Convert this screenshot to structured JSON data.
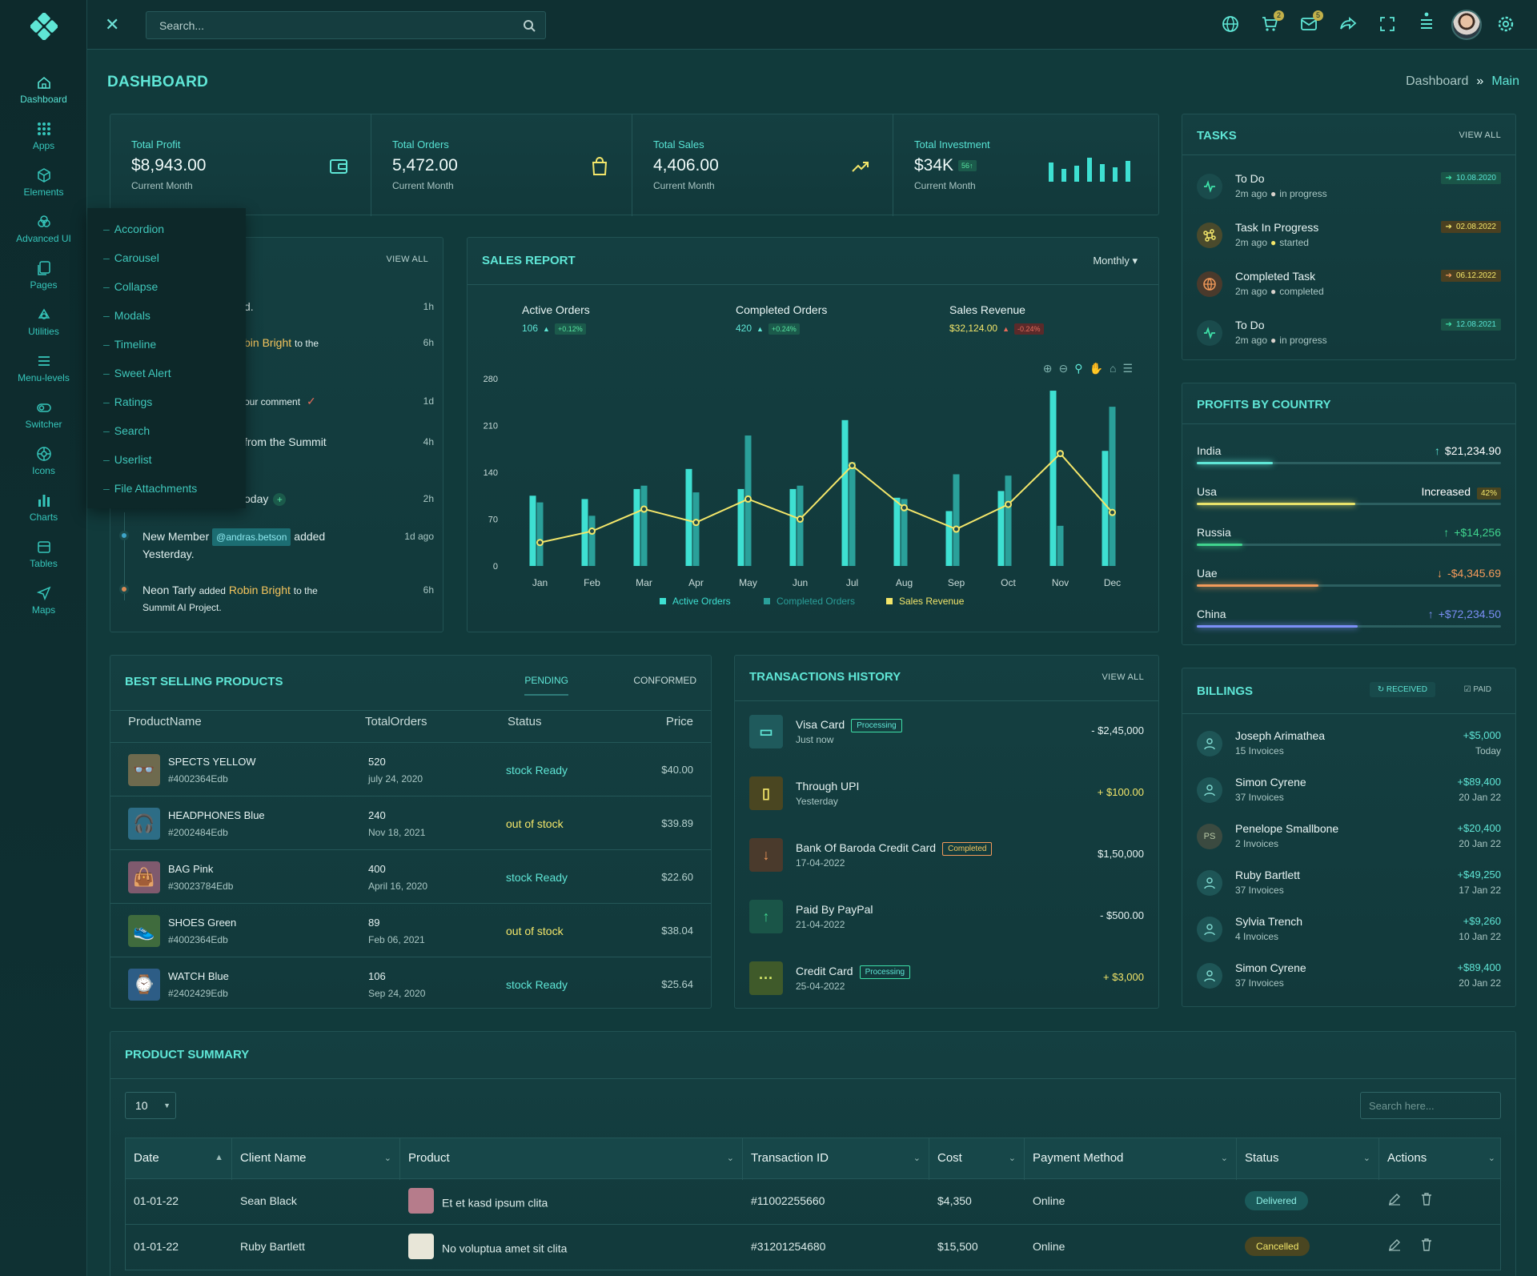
{
  "sidebar": {
    "items": [
      {
        "label": "Dashboard",
        "icon": "home-icon"
      },
      {
        "label": "Apps",
        "icon": "grid-icon"
      },
      {
        "label": "Elements",
        "icon": "cube-icon"
      },
      {
        "label": "Advanced UI",
        "icon": "layers-icon"
      },
      {
        "label": "Pages",
        "icon": "pages-icon"
      },
      {
        "label": "Utilities",
        "icon": "utilities-icon"
      },
      {
        "label": "Menu-levels",
        "icon": "menu-icon"
      },
      {
        "label": "Switcher",
        "icon": "toggle-icon"
      },
      {
        "label": "Icons",
        "icon": "globe-icon"
      },
      {
        "label": "Charts",
        "icon": "chart-icon"
      },
      {
        "label": "Tables",
        "icon": "table-icon"
      },
      {
        "label": "Maps",
        "icon": "map-icon"
      }
    ]
  },
  "submenu": {
    "items": [
      "Accordion",
      "Carousel",
      "Collapse",
      "Modals",
      "Timeline",
      "Sweet Alert",
      "Ratings",
      "Search",
      "Userlist",
      "File Attachments"
    ]
  },
  "header": {
    "search_placeholder": "Search...",
    "cart_count": "2",
    "mail_count": "5"
  },
  "page": {
    "title": "DASHBOARD",
    "crumb_parent": "Dashboard",
    "crumb_sep": "»",
    "crumb_current": "Main"
  },
  "stats": [
    {
      "label": "Total Profit",
      "value": "$8,943.00",
      "sub": "Current Month"
    },
    {
      "label": "Total Orders",
      "value": "5,472.00",
      "sub": "Current Month"
    },
    {
      "label": "Total Sales",
      "value": "4,406.00",
      "sub": "Current Month"
    },
    {
      "label": "Total Investment",
      "value": "$34K",
      "badge": "56↑",
      "sub": "Current Month"
    }
  ],
  "activity": {
    "view_all": "VIEW ALL",
    "items": [
      {
        "pre": "d.",
        "hl": "",
        "post": "",
        "time": "1h"
      },
      {
        "pre": "",
        "hl": "bin Bright",
        "post": "to the",
        "time": "6h"
      },
      {
        "pre": "our comment",
        "hl": "",
        "post": "",
        "time": "1d"
      },
      {
        "pre": "from the Summit",
        "hl": "",
        "post": "",
        "time": "4h"
      },
      {
        "pre": "oday",
        "hl": "",
        "post": "",
        "time": "2h"
      },
      {
        "pre": "New Member",
        "tag": "@andras.betson",
        "post": "added",
        "line2": "Yesterday.",
        "time": "1d ago"
      },
      {
        "pre": "Neon Tarly",
        "mid": "added",
        "hl": "Robin Bright",
        "post": "to the",
        "line2": "Summit AI Project.",
        "time": "6h"
      }
    ]
  },
  "sales": {
    "title": "SALES REPORT",
    "period": "Monthly",
    "kpis": [
      {
        "label": "Active Orders",
        "value": "106",
        "pct": "+0.12%"
      },
      {
        "label": "Completed Orders",
        "value": "420",
        "pct": "+0.24%"
      },
      {
        "label": "Sales Revenue",
        "value": "$32,124.00",
        "pct": "-0.24%"
      }
    ]
  },
  "chart_data": {
    "type": "bar",
    "categories": [
      "Jan",
      "Feb",
      "Mar",
      "Apr",
      "May",
      "Jun",
      "Jul",
      "Aug",
      "Sep",
      "Oct",
      "Nov",
      "Dec"
    ],
    "series": [
      {
        "name": "Active Orders",
        "type": "bar",
        "values": [
          105,
          100,
          115,
          145,
          115,
          115,
          218,
          102,
          82,
          112,
          262,
          172
        ],
        "color": "#3ee0d2"
      },
      {
        "name": "Completed Orders",
        "type": "bar",
        "values": [
          95,
          75,
          120,
          110,
          195,
          120,
          155,
          100,
          137,
          135,
          60,
          238
        ],
        "color": "#2aa09a"
      },
      {
        "name": "Sales Revenue",
        "type": "line",
        "values": [
          35,
          52,
          85,
          65,
          100,
          70,
          150,
          87,
          55,
          92,
          168,
          80
        ],
        "color": "#f3e66a"
      }
    ],
    "yticks": [
      0,
      70,
      140,
      210,
      280
    ],
    "ylim": [
      0,
      280
    ]
  },
  "tasks": {
    "title": "TASKS",
    "view_all": "VIEW ALL",
    "items": [
      {
        "name": "To Do",
        "time": "2m ago",
        "status": "in progress",
        "date": "10.08.2020",
        "color": "#3ee0a8",
        "icon": "pulse-icon"
      },
      {
        "name": "Task In Progress",
        "time": "2m ago",
        "status": "started",
        "date": "02.08.2022",
        "color": "#f3e66a",
        "icon": "command-icon"
      },
      {
        "name": "Completed Task",
        "time": "2m ago",
        "status": "completed",
        "date": "06.12.2022",
        "color": "#f39a5a",
        "icon": "globe-icon"
      },
      {
        "name": "To Do",
        "time": "2m ago",
        "status": "in progress",
        "date": "12.08.2021",
        "color": "#3ee0a8",
        "icon": "pulse-icon"
      }
    ]
  },
  "profits": {
    "title": "PROFITS BY COUNTRY",
    "items": [
      {
        "country": "India",
        "value": "$21,234.90",
        "arrow": "↑",
        "fill": 0.25,
        "color": "#5fe6d6"
      },
      {
        "country": "Usa",
        "value": "Increased",
        "badge": "42%",
        "fill": 0.52,
        "color": "#e8e36a"
      },
      {
        "country": "Russia",
        "value": "+$14,256",
        "arrow": "↑",
        "fill": 0.15,
        "color": "#40d48e"
      },
      {
        "country": "Uae",
        "value": "-$4,345.69",
        "arrow": "↓",
        "fill": 0.4,
        "color": "#f39a5a"
      },
      {
        "country": "China",
        "value": "+$72,234.50",
        "arrow": "↑",
        "fill": 0.53,
        "color": "#7b8ff6"
      }
    ]
  },
  "billings": {
    "title": "BILLINGS",
    "tab_received": "RECEIVED",
    "tab_paid": "PAID",
    "items": [
      {
        "name": "Joseph Arimathea",
        "invoices": "15 Invoices",
        "amount": "+$5,000",
        "date": "Today",
        "initials": ""
      },
      {
        "name": "Simon Cyrene",
        "invoices": "37 Invoices",
        "amount": "+$89,400",
        "date": "20 Jan 22",
        "initials": ""
      },
      {
        "name": "Penelope Smallbone",
        "invoices": "2 Invoices",
        "amount": "+$20,400",
        "date": "20 Jan 22",
        "initials": "PS"
      },
      {
        "name": "Ruby Bartlett",
        "invoices": "37 Invoices",
        "amount": "+$49,250",
        "date": "17 Jan 22",
        "initials": ""
      },
      {
        "name": "Sylvia Trench",
        "invoices": "4 Invoices",
        "amount": "+$9,260",
        "date": "10 Jan 22",
        "initials": ""
      },
      {
        "name": "Simon Cyrene",
        "invoices": "37 Invoices",
        "amount": "+$89,400",
        "date": "20 Jan 22",
        "initials": ""
      }
    ]
  },
  "best": {
    "title": "BEST SELLING PRODUCTS",
    "tab_pending": "PENDING",
    "tab_conformed": "CONFORMED",
    "headers": [
      "ProductName",
      "TotalOrders",
      "Status",
      "Price"
    ],
    "rows": [
      {
        "name": "SPECTS YELLOW",
        "id": "#4002364Edb",
        "orders": "520",
        "date": "july 24, 2020",
        "status": "stock Ready",
        "price": "$40.00"
      },
      {
        "name": "HEADPHONES Blue",
        "id": "#2002484Edb",
        "orders": "240",
        "date": "Nov 18, 2021",
        "status": "out of stock",
        "price": "$39.89"
      },
      {
        "name": "BAG Pink",
        "id": "#30023784Edb",
        "orders": "400",
        "date": "April 16, 2020",
        "status": "stock Ready",
        "price": "$22.60"
      },
      {
        "name": "SHOES Green",
        "id": "#4002364Edb",
        "orders": "89",
        "date": "Feb 06, 2021",
        "status": "out of stock",
        "price": "$38.04"
      },
      {
        "name": "WATCH Blue",
        "id": "#2402429Edb",
        "orders": "106",
        "date": "Sep 24, 2020",
        "status": "stock Ready",
        "price": "$25.64"
      }
    ]
  },
  "transactions": {
    "title": "TRANSACTIONS HISTORY",
    "view_all": "VIEW ALL",
    "items": [
      {
        "name": "Visa Card",
        "sub": "Just now",
        "pill": "Processing",
        "amount": "- $2,45,000",
        "icon": "card-icon"
      },
      {
        "name": "Through UPI",
        "sub": "Yesterday",
        "pill": "",
        "amount": "+ $100.00",
        "icon": "phone-icon"
      },
      {
        "name": "Bank Of Baroda Credit Card",
        "sub": "17-04-2022",
        "pill": "Completed",
        "amount": "$1,50,000",
        "icon": "arrow-down-icon"
      },
      {
        "name": "Paid By PayPal",
        "sub": "21-04-2022",
        "pill": "",
        "amount": "- $500.00",
        "icon": "arrow-up-icon"
      },
      {
        "name": "Credit Card",
        "sub": "25-04-2022",
        "pill": "Processing",
        "amount": "+ $3,000",
        "icon": "dots-icon"
      }
    ]
  },
  "summary": {
    "title": "PRODUCT SUMMARY",
    "page_size": "10",
    "search_placeholder": "Search here...",
    "headers": [
      "Date",
      "Client Name",
      "Product",
      "Transaction ID",
      "Cost",
      "Payment Method",
      "Status",
      "Actions"
    ],
    "rows": [
      {
        "date": "01-01-22",
        "client": "Sean Black",
        "product": "Et et kasd ipsum clita",
        "txn": "#11002255660",
        "cost": "$4,350",
        "method": "Online",
        "status": "Delivered"
      },
      {
        "date": "01-01-22",
        "client": "Ruby Bartlett",
        "product": "No voluptua amet sit clita",
        "txn": "#31201254680",
        "cost": "$15,500",
        "method": "Online",
        "status": "Cancelled"
      }
    ]
  }
}
